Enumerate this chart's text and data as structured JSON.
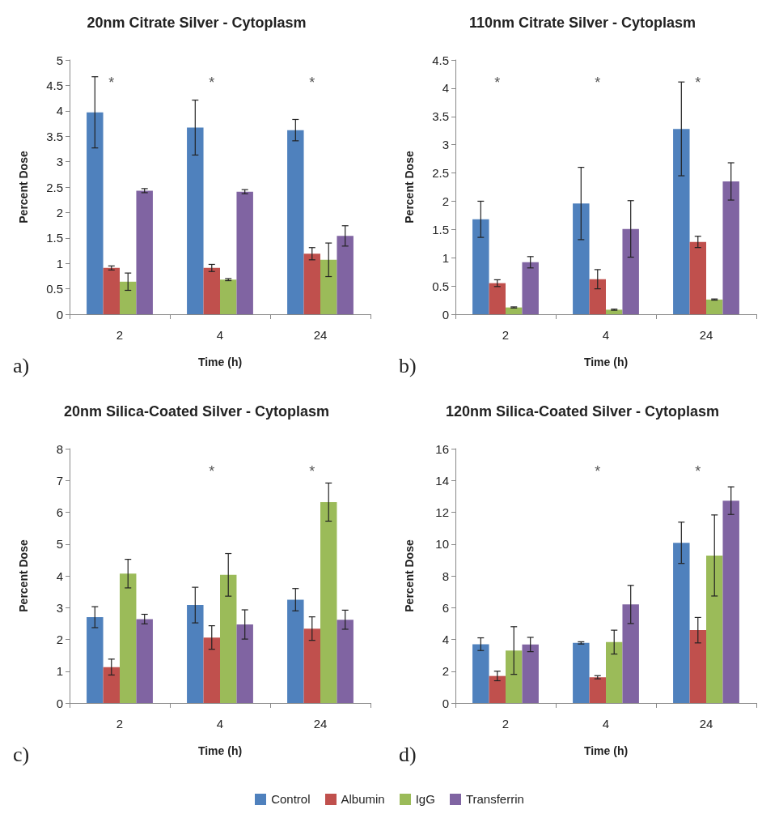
{
  "chart_data": [
    {
      "type": "bar",
      "title": "20nm Citrate Silver - Cytoplasm",
      "xlabel": "Time (h)",
      "ylabel": "Percent Dose",
      "categories": [
        "2",
        "4",
        "24"
      ],
      "ylim": [
        0,
        5
      ],
      "yticks": [
        0,
        0.5,
        1,
        1.5,
        2,
        2.5,
        3,
        3.5,
        4,
        4.5,
        5
      ],
      "grid": false,
      "legend": false,
      "series": [
        {
          "color": "#4f81bd",
          "values": [
            3.97,
            3.67,
            3.62
          ],
          "errors": [
            0.7,
            0.54,
            0.21
          ]
        },
        {
          "color": "#c0504d",
          "values": [
            0.91,
            0.91,
            1.19
          ],
          "errors": [
            0.04,
            0.07,
            0.12
          ]
        },
        {
          "color": "#9bbb59",
          "values": [
            0.64,
            0.68,
            1.07
          ],
          "errors": [
            0.17,
            0.02,
            0.33
          ]
        },
        {
          "color": "#8064a2",
          "values": [
            2.43,
            2.41,
            1.54
          ],
          "errors": [
            0.04,
            0.04,
            0.2
          ]
        }
      ],
      "annotations": [
        "*",
        "*",
        "*",
        "a)"
      ]
    },
    {
      "type": "bar",
      "title": "110nm Citrate Silver - Cytoplasm",
      "xlabel": "Time (h)",
      "ylabel": "Percent Dose",
      "categories": [
        "2",
        "4",
        "24"
      ],
      "ylim": [
        0,
        4.5
      ],
      "yticks": [
        0,
        0.5,
        1,
        1.5,
        2,
        2.5,
        3,
        3.5,
        4,
        4.5
      ],
      "grid": false,
      "legend": false,
      "series": [
        {
          "color": "#4f81bd",
          "values": [
            1.68,
            1.96,
            3.28
          ],
          "errors": [
            0.32,
            0.64,
            0.83
          ]
        },
        {
          "color": "#c0504d",
          "values": [
            0.55,
            0.62,
            1.28
          ],
          "errors": [
            0.06,
            0.17,
            0.1
          ]
        },
        {
          "color": "#9bbb59",
          "values": [
            0.12,
            0.08,
            0.26
          ],
          "errors": [
            0.01,
            0.01,
            0.01
          ]
        },
        {
          "color": "#8064a2",
          "values": [
            0.92,
            1.51,
            2.35
          ],
          "errors": [
            0.1,
            0.5,
            0.33
          ]
        }
      ],
      "annotations": [
        "*",
        "*",
        "*",
        "b)"
      ]
    },
    {
      "type": "bar",
      "title": "20nm Silica-Coated Silver - Cytoplasm",
      "xlabel": "Time (h)",
      "ylabel": "Percent Dose",
      "categories": [
        "2",
        "4",
        "24"
      ],
      "ylim": [
        0,
        8
      ],
      "yticks": [
        0,
        1,
        2,
        3,
        4,
        5,
        6,
        7,
        8
      ],
      "grid": false,
      "legend": false,
      "series": [
        {
          "color": "#4f81bd",
          "values": [
            2.7,
            3.08,
            3.25
          ],
          "errors": [
            0.33,
            0.56,
            0.35
          ]
        },
        {
          "color": "#c0504d",
          "values": [
            1.13,
            2.06,
            2.34
          ],
          "errors": [
            0.25,
            0.37,
            0.37
          ]
        },
        {
          "color": "#9bbb59",
          "values": [
            4.07,
            4.03,
            6.32
          ],
          "errors": [
            0.45,
            0.67,
            0.6
          ]
        },
        {
          "color": "#8064a2",
          "values": [
            2.64,
            2.47,
            2.62
          ],
          "errors": [
            0.15,
            0.46,
            0.3
          ]
        }
      ],
      "annotations": [
        "*",
        "*",
        "c)"
      ]
    },
    {
      "type": "bar",
      "title": "120nm Silica-Coated Silver - Cytoplasm",
      "xlabel": "Time (h)",
      "ylabel": "Percent Dose",
      "categories": [
        "2",
        "4",
        "24"
      ],
      "ylim": [
        0,
        16
      ],
      "yticks": [
        0,
        2,
        4,
        6,
        8,
        10,
        12,
        14,
        16
      ],
      "grid": false,
      "legend": "bottom",
      "series": [
        {
          "name": "Control",
          "color": "#4f81bd",
          "values": [
            3.7,
            3.78,
            10.08
          ],
          "errors": [
            0.4,
            0.07,
            1.3
          ]
        },
        {
          "name": "Albumin",
          "color": "#c0504d",
          "values": [
            1.7,
            1.62,
            4.58
          ],
          "errors": [
            0.3,
            0.1,
            0.8
          ]
        },
        {
          "name": "IgG",
          "color": "#9bbb59",
          "values": [
            3.3,
            3.83,
            9.28
          ],
          "errors": [
            1.5,
            0.75,
            2.55
          ]
        },
        {
          "name": "Transferrin",
          "color": "#8064a2",
          "values": [
            3.68,
            6.2,
            12.73
          ],
          "errors": [
            0.45,
            1.2,
            0.87
          ]
        }
      ],
      "annotations": [
        "*",
        "*",
        "d)"
      ]
    }
  ]
}
